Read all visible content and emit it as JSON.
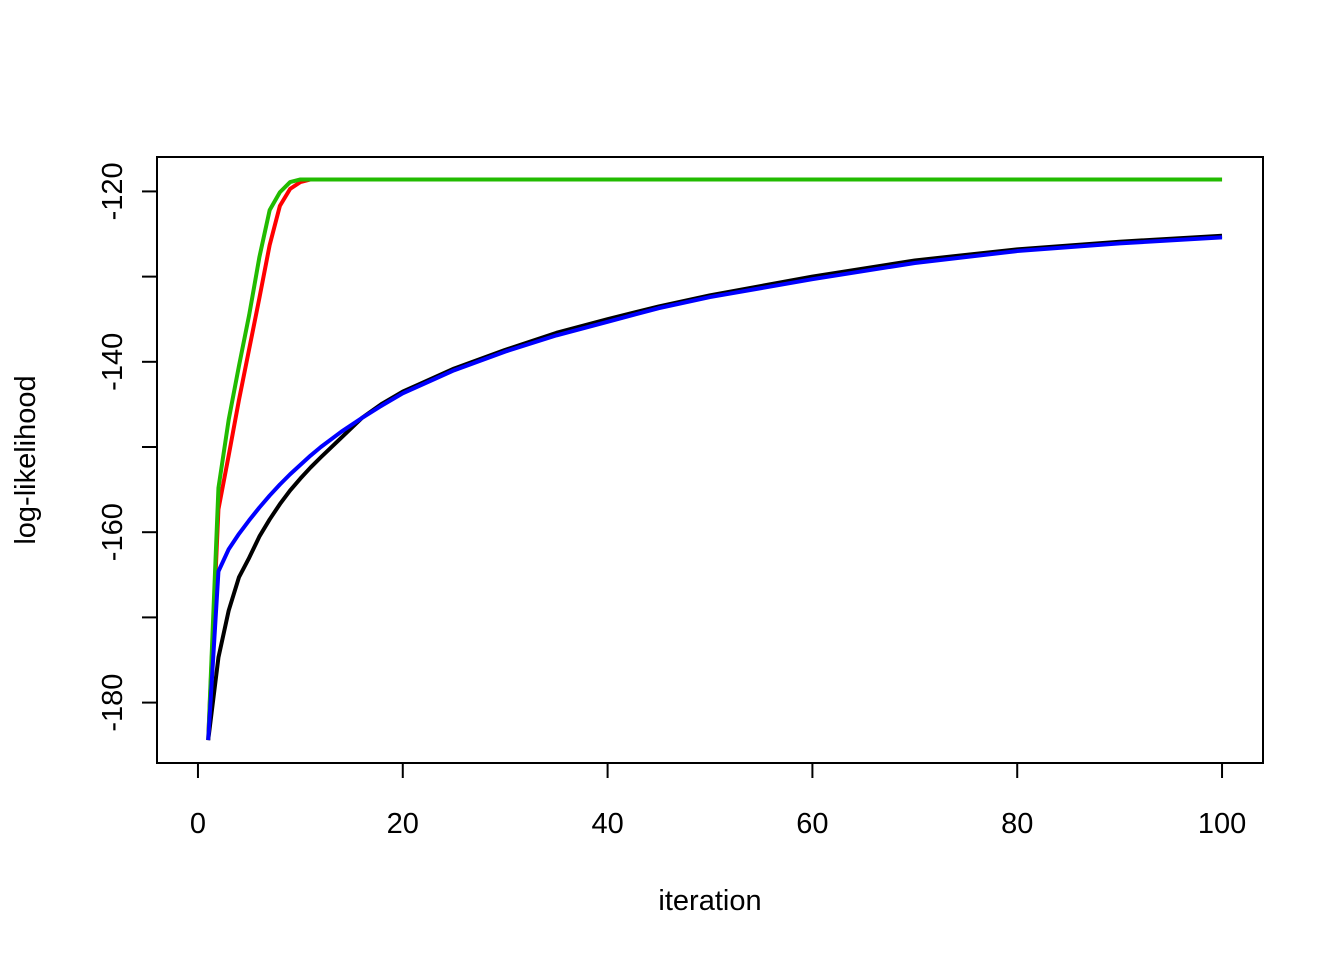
{
  "chart_data": {
    "type": "line",
    "xlabel": "iteration",
    "ylabel": "log-likelihood",
    "x": [
      1,
      2,
      3,
      4,
      5,
      6,
      7,
      8,
      9,
      10,
      11,
      12,
      14,
      16,
      18,
      20,
      25,
      30,
      35,
      40,
      45,
      50,
      60,
      70,
      80,
      90,
      100
    ],
    "series": [
      {
        "color": "#000000",
        "values": [
          -184.4,
          -174.7,
          -169.2,
          -165.3,
          -163,
          -160.5,
          -158.5,
          -156.7,
          -155.1,
          -153.7,
          -152.4,
          -151.2,
          -148.9,
          -146.6,
          -144.9,
          -143.5,
          -140.8,
          -138.6,
          -136.6,
          -135.0,
          -133.5,
          -132.2,
          -130.0,
          -128.1,
          -126.8,
          -125.9,
          -125.2
        ]
      },
      {
        "color": "#ff0000",
        "values": [
          -184.4,
          -157.3,
          -151,
          -144.5,
          -138.5,
          -132.5,
          -126.3,
          -121.7,
          -119.7,
          -118.9,
          -118.6,
          -118.6,
          -118.6,
          -118.6,
          -118.6,
          -118.6,
          -118.6,
          -118.6,
          -118.6,
          -118.6,
          -118.6,
          -118.6,
          -118.6,
          -118.6,
          -118.6,
          -118.6,
          -118.6
        ]
      },
      {
        "color": "#22bb00",
        "values": [
          -184.4,
          -154.8,
          -146.8,
          -140.5,
          -134.5,
          -127.7,
          -122.2,
          -120.1,
          -118.9,
          -118.6,
          -118.6,
          -118.6,
          -118.6,
          -118.6,
          -118.6,
          -118.6,
          -118.6,
          -118.6,
          -118.6,
          -118.6,
          -118.6,
          -118.6,
          -118.6,
          -118.6,
          -118.6,
          -118.6,
          -118.6
        ]
      },
      {
        "color": "#0000ff",
        "values": [
          -184.4,
          -164.6,
          -162,
          -160.2,
          -158.6,
          -157.1,
          -155.7,
          -154.4,
          -153.2,
          -152.1,
          -151,
          -150,
          -148.2,
          -146.6,
          -145.1,
          -143.7,
          -141.0,
          -138.8,
          -136.9,
          -135.3,
          -133.7,
          -132.4,
          -130.3,
          -128.4,
          -127.0,
          -126.1,
          -125.4
        ]
      }
    ],
    "xlim": [
      -4,
      104
    ],
    "ylim": [
      -187.09,
      -115.96
    ],
    "xticks": [
      0,
      20,
      40,
      60,
      80,
      100
    ],
    "yticks": [
      -180,
      -160,
      -140,
      -120
    ],
    "minor_yticks": [
      -170,
      -150,
      -130
    ]
  }
}
